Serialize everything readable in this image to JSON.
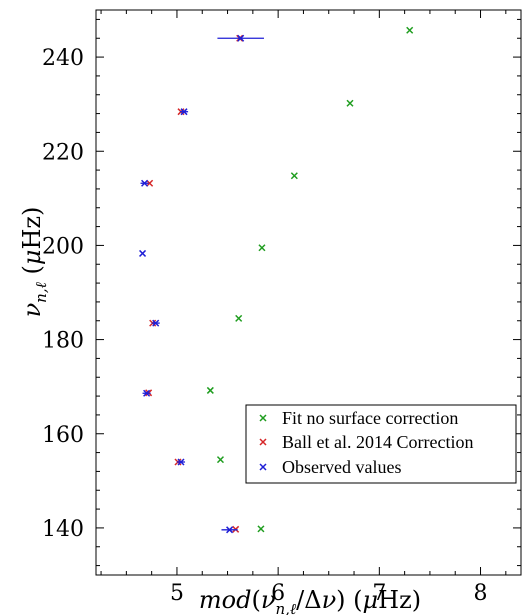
{
  "chart_data": {
    "type": "scatter",
    "xlabel": "mod(ν_n,ℓ/Δν) (μHz)",
    "ylabel": "ν_n,ℓ (μHz)",
    "xlim": [
      4.2,
      8.4
    ],
    "ylim": [
      130,
      250
    ],
    "x_ticks": [
      "5",
      "6",
      "7",
      "8"
    ],
    "y_ticks": [
      "140",
      "160",
      "180",
      "200",
      "220",
      "240"
    ],
    "grid": false,
    "legend_position": "bottom-right",
    "series": [
      {
        "name": "Fit no surface correction",
        "color": "#1f9d1f",
        "points": [
          {
            "x": 5.83,
            "y": 139.8
          },
          {
            "x": 5.43,
            "y": 154.5
          },
          {
            "x": 5.33,
            "y": 169.2
          },
          {
            "x": 5.61,
            "y": 184.5
          },
          {
            "x": 5.84,
            "y": 199.5
          },
          {
            "x": 6.16,
            "y": 214.8
          },
          {
            "x": 6.71,
            "y": 230.2
          },
          {
            "x": 7.3,
            "y": 245.7
          }
        ]
      },
      {
        "name": "Ball et al. 2014 Correction",
        "color": "#d62728",
        "points": [
          {
            "x": 5.58,
            "y": 139.7
          },
          {
            "x": 5.01,
            "y": 154.0
          },
          {
            "x": 4.72,
            "y": 168.7
          },
          {
            "x": 4.76,
            "y": 183.5
          },
          {
            "x": 4.73,
            "y": 213.2
          },
          {
            "x": 5.04,
            "y": 228.4
          },
          {
            "x": 5.62,
            "y": 244.0
          }
        ]
      },
      {
        "name": "Observed values",
        "color": "#1f1fd6",
        "points": [
          {
            "x": 5.52,
            "y": 139.6,
            "xerr": 0.08
          },
          {
            "x": 5.04,
            "y": 154.0,
            "xerr": 0.04
          },
          {
            "x": 4.7,
            "y": 168.6,
            "xerr": 0.04
          },
          {
            "x": 4.79,
            "y": 183.5,
            "xerr": 0.04
          },
          {
            "x": 4.66,
            "y": 198.3
          },
          {
            "x": 4.68,
            "y": 213.2,
            "xerr": 0.04
          },
          {
            "x": 5.07,
            "y": 228.4,
            "xerr": 0.04
          },
          {
            "x": 5.63,
            "y": 244.0,
            "xerr": 0.23
          }
        ]
      }
    ]
  }
}
